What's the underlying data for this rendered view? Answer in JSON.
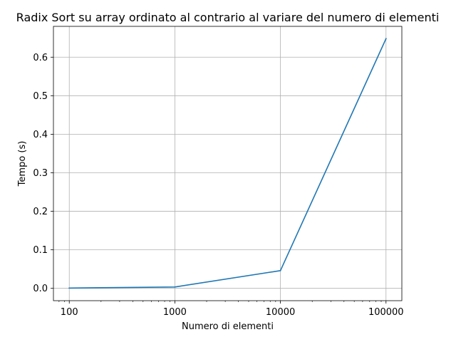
{
  "chart_data": {
    "type": "line",
    "title": "Radix Sort su array ordinato al contrario al variare del numero di elementi",
    "xlabel": "Numero di elementi",
    "ylabel": "Tempo (s)",
    "x_scale": "log",
    "x_ticks": [
      100,
      1000,
      10000,
      100000
    ],
    "x_tick_labels": [
      "100",
      "1000",
      "10000",
      "100000"
    ],
    "xlim": [
      70.8,
      141254
    ],
    "y_ticks": [
      0.0,
      0.1,
      0.2,
      0.3,
      0.4,
      0.5,
      0.6
    ],
    "y_tick_labels": [
      "0.0",
      "0.1",
      "0.2",
      "0.3",
      "0.4",
      "0.5",
      "0.6"
    ],
    "ylim": [
      -0.032,
      0.68
    ],
    "grid": true,
    "series": [
      {
        "color": "#1f77b4",
        "x": [
          100,
          1000,
          10000,
          100000
        ],
        "y": [
          0.0008,
          0.0035,
          0.046,
          0.648
        ]
      }
    ]
  }
}
